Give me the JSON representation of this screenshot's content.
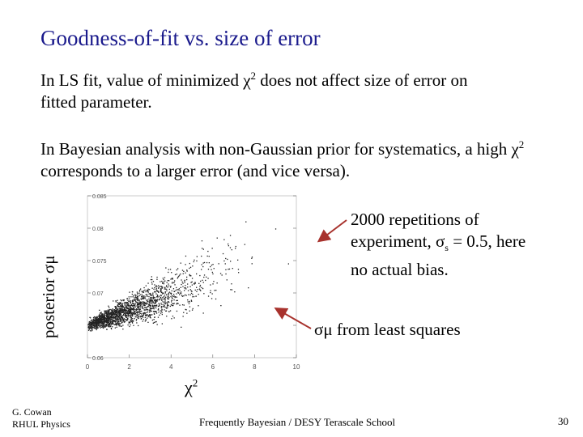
{
  "slide": {
    "title": "Goodness-of-fit vs. size of error",
    "para1_pre": "In LS fit, value of minimized χ",
    "para1_sup": "2",
    "para1_post": " does not affect size of error on fitted parameter.",
    "para2_pre": "In Bayesian analysis with non-Gaussian prior for systematics, a high χ",
    "para2_sup": "2",
    "para2_post": " corresponds to a larger error (and vice versa).",
    "annotation1_pre": "2000 repetitions of experiment, σ",
    "annotation1_sub": "s",
    "annotation1_post": " = 0.5, here no actual bias.",
    "annotation2": "σμ from least squares",
    "xlabel_main": "χ",
    "xlabel_sup": "2",
    "ylabel": "posterior σμ"
  },
  "chart_data": {
    "type": "scatter",
    "n_points": 2000,
    "x_ticks": [
      "0",
      "2",
      "4",
      "6",
      "8",
      "10"
    ],
    "y_ticks": [
      "0.06",
      "0.065",
      "0.07",
      "0.075",
      "0.08",
      "0.085"
    ],
    "xlim": [
      0,
      10
    ],
    "ylim": [
      0.06,
      0.085
    ],
    "least_squares_sigma": 0.065,
    "trend": {
      "x": [
        0,
        2,
        4,
        6,
        8,
        10
      ],
      "y": [
        0.065,
        0.0675,
        0.07,
        0.073,
        0.076,
        0.08
      ]
    }
  },
  "footer": {
    "author": "G. Cowan",
    "institution": "RHUL Physics",
    "center": "Frequently Bayesian  /  DESY Terascale School",
    "page": "30"
  },
  "colors": {
    "title": "#1a1a8c",
    "arrow": "#a8322d"
  }
}
